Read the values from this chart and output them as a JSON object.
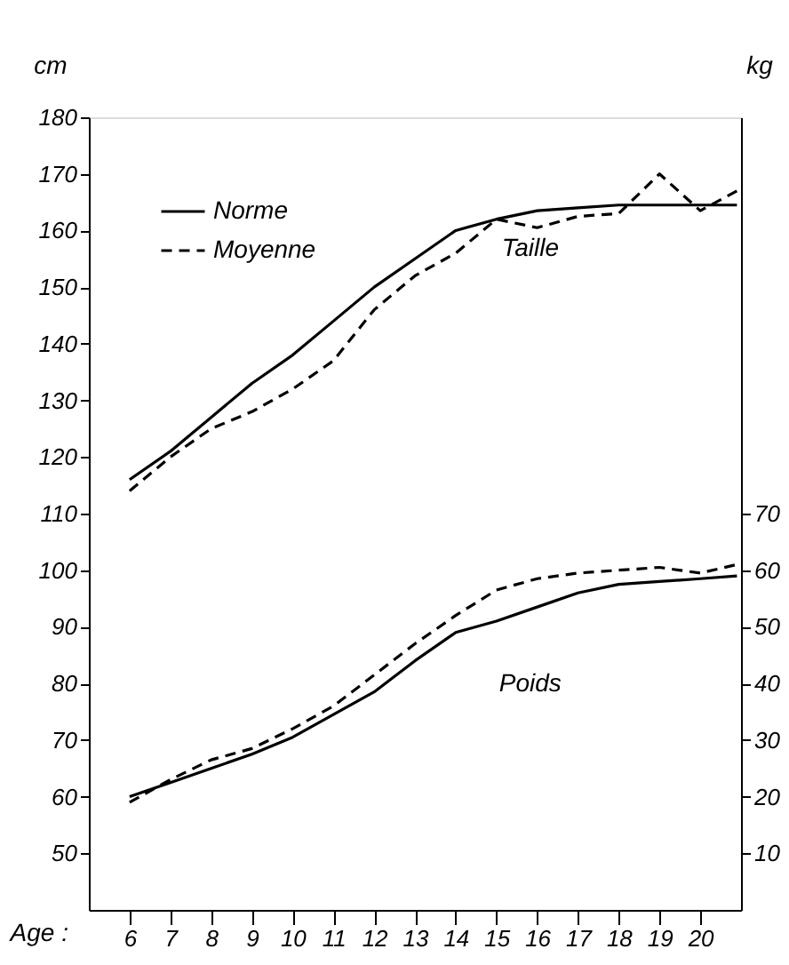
{
  "chart_data": {
    "type": "line",
    "ylabel": "cm",
    "y2label": "kg",
    "xlabel": "Age :",
    "xlim": [
      5,
      21
    ],
    "xticks": [
      6,
      7,
      8,
      9,
      10,
      11,
      12,
      13,
      14,
      15,
      16,
      17,
      18,
      19,
      20
    ],
    "ylim": [
      40,
      180
    ],
    "yticks": [
      50,
      60,
      70,
      80,
      90,
      100,
      110,
      120,
      130,
      140,
      150,
      160,
      170,
      180
    ],
    "y2lim": [
      0,
      140
    ],
    "y2ticks": [
      10,
      20,
      30,
      40,
      50,
      60,
      70
    ],
    "legend": "top left",
    "grid": false,
    "marker": "none",
    "annotations": [
      "Taille",
      "Poids"
    ],
    "series": [
      {
        "name": "Norme",
        "color": "#000000",
        "line_style": "solid",
        "x": [
          6,
          7,
          8,
          9,
          10,
          11,
          12,
          13,
          14,
          15,
          16,
          17,
          18,
          19,
          20,
          20.9
        ],
        "values": [
          116,
          121,
          127,
          133,
          138,
          144,
          150,
          155,
          160,
          162,
          163.5,
          164,
          164.5,
          164.5,
          164.5,
          164.5
        ]
      },
      {
        "name": "Moyenne",
        "color": "#000000",
        "line_style": "dashed",
        "x": [
          6,
          7,
          8,
          9,
          10,
          11,
          12,
          13,
          14,
          15,
          16,
          17,
          18,
          19,
          20,
          20.9
        ],
        "values": [
          114,
          120,
          125,
          128,
          132,
          137,
          146,
          152,
          156,
          162,
          160.5,
          162.5,
          163,
          170,
          163.5,
          167
        ]
      },
      {
        "color": "#000000",
        "line_style": "solid",
        "axis": "y2",
        "x": [
          6,
          7,
          8,
          9,
          10,
          11,
          12,
          13,
          14,
          15,
          16,
          17,
          18,
          19,
          20,
          20.9
        ],
        "values": [
          20,
          22.5,
          25,
          27.5,
          30.5,
          34.5,
          38.5,
          44,
          49,
          51,
          53.5,
          56,
          57.5,
          58,
          58.5,
          59
        ]
      },
      {
        "color": "#000000",
        "line_style": "dashed",
        "axis": "y2",
        "x": [
          6,
          7,
          8,
          9,
          10,
          11,
          12,
          13,
          14,
          15,
          16,
          17,
          18,
          19,
          20,
          20.9
        ],
        "values": [
          19,
          23,
          26.5,
          28.5,
          32,
          36,
          41.5,
          47,
          52,
          56.5,
          58.5,
          59.5,
          60,
          60.5,
          59.5,
          61
        ]
      }
    ]
  }
}
